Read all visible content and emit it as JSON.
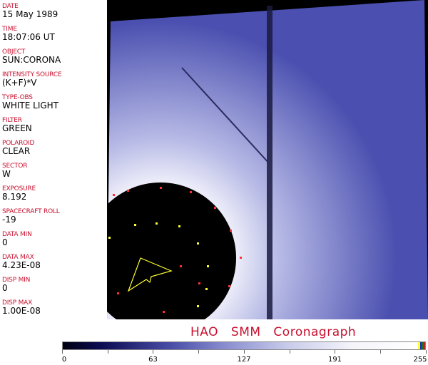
{
  "fields": [
    {
      "label": "DATE",
      "value": "15 May 1989"
    },
    {
      "label": "TIME",
      "value": "18:07:06 UT"
    },
    {
      "label": "OBJECT",
      "value": "SUN:CORONA"
    },
    {
      "label": "INTENSITY SOURCE",
      "value": "(K+F)*V"
    },
    {
      "label": "TYPE-OBS",
      "value": "WHITE LIGHT"
    },
    {
      "label": "FILTER",
      "value": "GREEN"
    },
    {
      "label": "POLAROID",
      "value": "CLEAR"
    },
    {
      "label": "SECTOR",
      "value": "W"
    },
    {
      "label": "EXPOSURE",
      "value": "8.192"
    },
    {
      "label": "SPACECRAFT ROLL",
      "value": "-19"
    },
    {
      "label": "DATA MIN",
      "value": "0"
    },
    {
      "label": "DATA MAX",
      "value": "4.23E-08"
    },
    {
      "label": "DISP MIN",
      "value": "0"
    },
    {
      "label": "DISP MAX",
      "value": "1.00E-08"
    }
  ],
  "title": "HAO  SMM Coronagraph",
  "colorbar": {
    "ticks": [
      "0",
      "63",
      "127",
      "191",
      "255"
    ],
    "colors": {
      "low": "#000010",
      "mid": "#4a4ea8",
      "high": "#ffffff",
      "label": "#c8102e"
    }
  }
}
